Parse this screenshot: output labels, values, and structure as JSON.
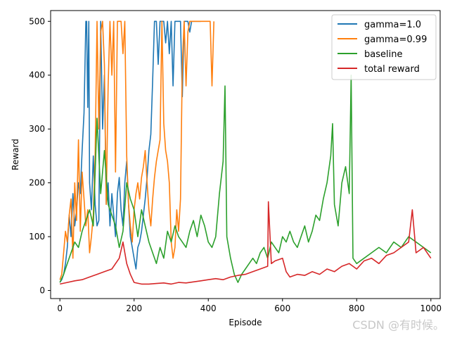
{
  "chart_data": {
    "type": "line",
    "title": "",
    "xlabel": "Episode",
    "ylabel": "Reward",
    "xlim": [
      -25,
      1025
    ],
    "ylim": [
      -15,
      520
    ],
    "xticks": [
      0,
      200,
      400,
      600,
      800,
      1000
    ],
    "yticks": [
      0,
      100,
      200,
      300,
      400,
      500
    ],
    "legend_position": "top-right",
    "series": [
      {
        "name": "gamma=1.0",
        "color": "#1f77b4",
        "x": [
          0,
          5,
          10,
          15,
          20,
          25,
          30,
          35,
          40,
          45,
          50,
          55,
          60,
          65,
          70,
          72,
          75,
          78,
          80,
          85,
          90,
          95,
          100,
          105,
          110,
          115,
          120,
          125,
          130,
          135,
          140,
          145,
          150,
          155,
          160,
          165,
          170,
          175,
          180,
          185,
          190,
          195,
          200,
          205,
          210,
          215,
          220,
          225,
          230,
          235,
          240,
          245,
          250,
          255,
          260,
          265,
          270,
          275,
          280,
          285,
          290,
          295,
          300,
          305,
          310,
          315,
          320,
          325,
          330,
          335,
          340,
          345,
          350,
          355,
          360,
          365,
          370,
          375,
          380
        ],
        "y": [
          15,
          20,
          30,
          50,
          80,
          140,
          100,
          180,
          120,
          150,
          200,
          180,
          260,
          330,
          500,
          500,
          340,
          500,
          200,
          150,
          250,
          160,
          120,
          130,
          500,
          300,
          400,
          160,
          200,
          120,
          180,
          140,
          100,
          180,
          210,
          150,
          120,
          200,
          240,
          160,
          100,
          80,
          60,
          40,
          80,
          90,
          110,
          140,
          170,
          210,
          260,
          290,
          390,
          500,
          500,
          420,
          500,
          500,
          500,
          460,
          500,
          440,
          500,
          380,
          500,
          500,
          500,
          500,
          360,
          500,
          500,
          500,
          480,
          500,
          500,
          500,
          500,
          500,
          500
        ]
      },
      {
        "name": "gamma=0.99",
        "color": "#ff7f0e",
        "x": [
          0,
          5,
          10,
          15,
          20,
          25,
          30,
          35,
          40,
          45,
          50,
          55,
          60,
          65,
          70,
          75,
          80,
          85,
          90,
          95,
          100,
          105,
          110,
          115,
          120,
          125,
          130,
          135,
          140,
          145,
          150,
          155,
          160,
          165,
          170,
          175,
          180,
          185,
          190,
          195,
          200,
          205,
          210,
          215,
          220,
          225,
          230,
          235,
          240,
          245,
          250,
          255,
          260,
          265,
          270,
          275,
          280,
          285,
          290,
          295,
          300,
          305,
          310,
          315,
          320,
          325,
          330,
          335,
          340,
          345,
          350,
          360,
          370,
          380,
          390,
          400,
          405,
          410,
          415
        ],
        "y": [
          20,
          30,
          70,
          110,
          90,
          140,
          170,
          60,
          200,
          130,
          280,
          110,
          220,
          170,
          120,
          150,
          70,
          100,
          140,
          250,
          500,
          300,
          480,
          500,
          420,
          160,
          380,
          500,
          400,
          500,
          220,
          500,
          500,
          500,
          440,
          500,
          250,
          160,
          120,
          90,
          150,
          180,
          200,
          170,
          210,
          230,
          260,
          200,
          150,
          120,
          170,
          210,
          240,
          260,
          280,
          500,
          310,
          260,
          240,
          200,
          90,
          60,
          80,
          150,
          110,
          170,
          420,
          500,
          380,
          480,
          500,
          500,
          500,
          500,
          500,
          500,
          500,
          380,
          500
        ]
      },
      {
        "name": "baseline",
        "color": "#2ca02c",
        "x": [
          0,
          10,
          20,
          30,
          40,
          50,
          60,
          70,
          80,
          90,
          100,
          110,
          120,
          130,
          140,
          150,
          160,
          170,
          180,
          190,
          200,
          210,
          220,
          230,
          240,
          250,
          260,
          270,
          280,
          290,
          300,
          310,
          320,
          330,
          340,
          350,
          360,
          370,
          380,
          390,
          400,
          410,
          420,
          430,
          440,
          445,
          450,
          460,
          470,
          480,
          490,
          500,
          510,
          520,
          530,
          540,
          550,
          560,
          570,
          580,
          590,
          600,
          610,
          620,
          630,
          640,
          650,
          660,
          670,
          680,
          690,
          700,
          710,
          720,
          730,
          735,
          740,
          750,
          760,
          770,
          780,
          785,
          790,
          800,
          820,
          840,
          860,
          880,
          900,
          920,
          940,
          960,
          980,
          1000
        ],
        "y": [
          15,
          30,
          50,
          70,
          90,
          80,
          110,
          130,
          150,
          120,
          320,
          180,
          260,
          160,
          140,
          120,
          80,
          110,
          200,
          170,
          150,
          100,
          150,
          120,
          90,
          70,
          50,
          80,
          60,
          110,
          90,
          120,
          100,
          90,
          80,
          110,
          130,
          100,
          140,
          120,
          90,
          80,
          100,
          180,
          240,
          380,
          100,
          60,
          30,
          15,
          30,
          40,
          50,
          60,
          50,
          70,
          80,
          60,
          90,
          80,
          70,
          100,
          90,
          110,
          90,
          80,
          100,
          120,
          90,
          110,
          140,
          130,
          170,
          200,
          250,
          310,
          160,
          120,
          200,
          230,
          180,
          400,
          60,
          50,
          60,
          70,
          80,
          70,
          90,
          80,
          100,
          90,
          80,
          70
        ]
      },
      {
        "name": "total reward",
        "color": "#d62728",
        "x": [
          0,
          20,
          40,
          60,
          80,
          100,
          120,
          140,
          160,
          170,
          180,
          190,
          200,
          220,
          240,
          260,
          280,
          300,
          320,
          340,
          360,
          380,
          400,
          420,
          440,
          460,
          480,
          500,
          520,
          540,
          560,
          562,
          570,
          580,
          600,
          610,
          620,
          640,
          660,
          680,
          700,
          720,
          740,
          760,
          780,
          790,
          800,
          820,
          840,
          860,
          880,
          900,
          920,
          940,
          950,
          960,
          980,
          1000
        ],
        "y": [
          12,
          15,
          18,
          20,
          25,
          30,
          35,
          40,
          60,
          90,
          50,
          30,
          15,
          12,
          12,
          13,
          14,
          12,
          15,
          14,
          16,
          18,
          20,
          22,
          20,
          25,
          28,
          30,
          35,
          40,
          45,
          165,
          50,
          55,
          60,
          35,
          25,
          30,
          28,
          35,
          30,
          40,
          35,
          45,
          50,
          45,
          40,
          55,
          60,
          50,
          65,
          70,
          80,
          90,
          150,
          70,
          80,
          60
        ]
      }
    ]
  },
  "watermark": "CSDN @有时候。"
}
